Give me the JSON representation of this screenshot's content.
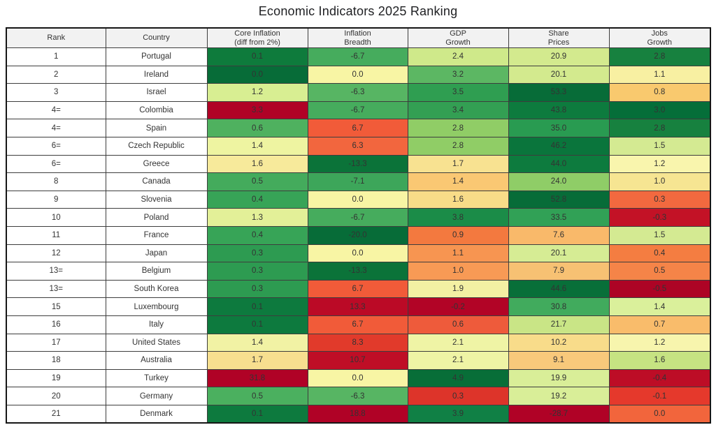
{
  "title": "Economic Indicators 2025 Ranking",
  "colors": {
    "header_bg": "#f2f2f2",
    "grid_border": "#3d3d3d",
    "outer_border": "#161616",
    "cell_text": "#333333",
    "scale_green_max": "#076c38",
    "scale_center": "#f8f5a4",
    "scale_red_max": "#b00226"
  },
  "table": {
    "headers": [
      "Rank",
      "Country",
      "Core Inflation\n(diff from 2%)",
      "Inflation\nBreadth",
      "GDP\nGrowth",
      "Share\nPrices",
      "Jobs\nGrowth"
    ],
    "rows": [
      {
        "rank": "1",
        "country": "Portugal",
        "values": [
          {
            "v": "0.1",
            "bg": "#0e7b3c"
          },
          {
            "v": "-6.7",
            "bg": "#46ac5d"
          },
          {
            "v": "2.4",
            "bg": "#cfe98a"
          },
          {
            "v": "20.9",
            "bg": "#d3ea8e"
          },
          {
            "v": "2.8",
            "bg": "#17813f"
          }
        ]
      },
      {
        "rank": "2",
        "country": "Ireland",
        "values": [
          {
            "v": "0.0",
            "bg": "#076c38"
          },
          {
            "v": "0.0",
            "bg": "#f8f5a4"
          },
          {
            "v": "3.2",
            "bg": "#5cb763"
          },
          {
            "v": "20.1",
            "bg": "#d3ea8e"
          },
          {
            "v": "1.1",
            "bg": "#f8f0a2"
          }
        ]
      },
      {
        "rank": "3",
        "country": "Israel",
        "values": [
          {
            "v": "1.2",
            "bg": "#d8ee92"
          },
          {
            "v": "-6.3",
            "bg": "#57b563"
          },
          {
            "v": "3.5",
            "bg": "#2f9e51"
          },
          {
            "v": "53.3",
            "bg": "#076c38"
          },
          {
            "v": "0.8",
            "bg": "#f9c96e"
          }
        ]
      },
      {
        "rank": "4=",
        "country": "Colombia",
        "values": [
          {
            "v": "3.3",
            "bg": "#b00226"
          },
          {
            "v": "-6.7",
            "bg": "#46ac5d"
          },
          {
            "v": "3.4",
            "bg": "#339f53"
          },
          {
            "v": "43.8",
            "bg": "#0d7b3e"
          },
          {
            "v": "3.0",
            "bg": "#056e39"
          }
        ]
      },
      {
        "rank": "4=",
        "country": "Spain",
        "values": [
          {
            "v": "0.6",
            "bg": "#4fb15f"
          },
          {
            "v": "6.7",
            "bg": "#f15b39"
          },
          {
            "v": "2.8",
            "bg": "#90cd66"
          },
          {
            "v": "35.0",
            "bg": "#299b51"
          },
          {
            "v": "2.8",
            "bg": "#17813f"
          }
        ]
      },
      {
        "rank": "6=",
        "country": "Czech Republic",
        "values": [
          {
            "v": "1.4",
            "bg": "#eef4a1"
          },
          {
            "v": "6.3",
            "bg": "#f2663e"
          },
          {
            "v": "2.8",
            "bg": "#90cd66"
          },
          {
            "v": "46.2",
            "bg": "#0a753c"
          },
          {
            "v": "1.5",
            "bg": "#d4ea92"
          }
        ]
      },
      {
        "rank": "6=",
        "country": "Greece",
        "values": [
          {
            "v": "1.6",
            "bg": "#f7ea9b"
          },
          {
            "v": "-13.3",
            "bg": "#0b7339"
          },
          {
            "v": "1.7",
            "bg": "#f8e291"
          },
          {
            "v": "44.0",
            "bg": "#0d7b3e"
          },
          {
            "v": "1.2",
            "bg": "#f9f5ad"
          }
        ]
      },
      {
        "rank": "8",
        "country": "Canada",
        "values": [
          {
            "v": "0.5",
            "bg": "#44ab5c"
          },
          {
            "v": "-7.1",
            "bg": "#3da65a"
          },
          {
            "v": "1.4",
            "bg": "#fac873"
          },
          {
            "v": "24.0",
            "bg": "#8fcd67"
          },
          {
            "v": "1.0",
            "bg": "#f6e592"
          }
        ]
      },
      {
        "rank": "9",
        "country": "Slovenia",
        "values": [
          {
            "v": "0.4",
            "bg": "#37a457"
          },
          {
            "v": "0.0",
            "bg": "#f8f5a4"
          },
          {
            "v": "1.6",
            "bg": "#f8dc88"
          },
          {
            "v": "52.8",
            "bg": "#076c38"
          },
          {
            "v": "0.3",
            "bg": "#f2693f"
          }
        ]
      },
      {
        "rank": "10",
        "country": "Poland",
        "values": [
          {
            "v": "1.3",
            "bg": "#e3f098"
          },
          {
            "v": "-6.7",
            "bg": "#46ac5d"
          },
          {
            "v": "3.8",
            "bg": "#1b8c48"
          },
          {
            "v": "33.5",
            "bg": "#31a156"
          },
          {
            "v": "-0.3",
            "bg": "#c31226"
          }
        ]
      },
      {
        "rank": "11",
        "country": "France",
        "values": [
          {
            "v": "0.4",
            "bg": "#37a457"
          },
          {
            "v": "-20.0",
            "bg": "#076c38"
          },
          {
            "v": "0.9",
            "bg": "#f3793f"
          },
          {
            "v": "7.6",
            "bg": "#f9b96a"
          },
          {
            "v": "1.5",
            "bg": "#d4ea92"
          }
        ]
      },
      {
        "rank": "12",
        "country": "Japan",
        "values": [
          {
            "v": "0.3",
            "bg": "#2d9b51"
          },
          {
            "v": "0.0",
            "bg": "#f8f5a4"
          },
          {
            "v": "1.1",
            "bg": "#f79551"
          },
          {
            "v": "20.1",
            "bg": "#d6ec94"
          },
          {
            "v": "0.4",
            "bg": "#f47d41"
          }
        ]
      },
      {
        "rank": "13=",
        "country": "Belgium",
        "values": [
          {
            "v": "0.3",
            "bg": "#2d9b51"
          },
          {
            "v": "-13.3",
            "bg": "#0b7339"
          },
          {
            "v": "1.0",
            "bg": "#f89a55"
          },
          {
            "v": "7.9",
            "bg": "#f7c173"
          },
          {
            "v": "0.5",
            "bg": "#f58448"
          }
        ]
      },
      {
        "rank": "13=",
        "country": "South Korea",
        "values": [
          {
            "v": "0.3",
            "bg": "#2d9b51"
          },
          {
            "v": "6.7",
            "bg": "#f15b39"
          },
          {
            "v": "1.9",
            "bg": "#f3f0a3"
          },
          {
            "v": "44.6",
            "bg": "#086f39"
          },
          {
            "v": "-0.5",
            "bg": "#ad0425"
          }
        ]
      },
      {
        "rank": "15",
        "country": "Luxembourg",
        "values": [
          {
            "v": "0.1",
            "bg": "#0d7a3e"
          },
          {
            "v": "13.3",
            "bg": "#bb0a26"
          },
          {
            "v": "-0.2",
            "bg": "#b20426"
          },
          {
            "v": "30.8",
            "bg": "#41ab5d"
          },
          {
            "v": "1.4",
            "bg": "#daf09b"
          }
        ]
      },
      {
        "rank": "16",
        "country": "Italy",
        "values": [
          {
            "v": "0.1",
            "bg": "#0d7a3e"
          },
          {
            "v": "6.7",
            "bg": "#f15b39"
          },
          {
            "v": "0.6",
            "bg": "#ee5b3b"
          },
          {
            "v": "21.7",
            "bg": "#c9e586"
          },
          {
            "v": "0.7",
            "bg": "#f9bc6b"
          }
        ]
      },
      {
        "rank": "17",
        "country": "United States",
        "values": [
          {
            "v": "1.4",
            "bg": "#f1f2a4"
          },
          {
            "v": "8.3",
            "bg": "#e13a2b"
          },
          {
            "v": "2.1",
            "bg": "#eff4a5"
          },
          {
            "v": "10.2",
            "bg": "#f8dc8a"
          },
          {
            "v": "1.2",
            "bg": "#f7f5ad"
          }
        ]
      },
      {
        "rank": "18",
        "country": "Australia",
        "values": [
          {
            "v": "1.7",
            "bg": "#f7df8f"
          },
          {
            "v": "10.7",
            "bg": "#bf0e26"
          },
          {
            "v": "2.1",
            "bg": "#eff4a5"
          },
          {
            "v": "9.1",
            "bg": "#f8c97b"
          },
          {
            "v": "1.6",
            "bg": "#c6e382"
          }
        ]
      },
      {
        "rank": "19",
        "country": "Turkey",
        "values": [
          {
            "v": "31.8",
            "bg": "#b00226"
          },
          {
            "v": "0.0",
            "bg": "#f8f5a4"
          },
          {
            "v": "4.9",
            "bg": "#086e38"
          },
          {
            "v": "19.9",
            "bg": "#d9ee98"
          },
          {
            "v": "-0.4",
            "bg": "#bd0d26"
          }
        ]
      },
      {
        "rank": "20",
        "country": "Germany",
        "values": [
          {
            "v": "0.5",
            "bg": "#4bb05f"
          },
          {
            "v": "-6.3",
            "bg": "#57b563"
          },
          {
            "v": "0.3",
            "bg": "#dd342a"
          },
          {
            "v": "19.2",
            "bg": "#d9ee98"
          },
          {
            "v": "-0.1",
            "bg": "#e5392c"
          }
        ]
      },
      {
        "rank": "21",
        "country": "Denmark",
        "values": [
          {
            "v": "0.1",
            "bg": "#0d7a3e"
          },
          {
            "v": "18.8",
            "bg": "#b00226"
          },
          {
            "v": "3.9",
            "bg": "#108045"
          },
          {
            "v": "-28.7",
            "bg": "#b00226"
          },
          {
            "v": "0.0",
            "bg": "#f2653c"
          }
        ]
      }
    ]
  },
  "chart_data": {
    "type": "table",
    "title": "Economic Indicators 2025 Ranking",
    "columns": [
      "Rank",
      "Country",
      "Core Inflation (diff from 2%)",
      "Inflation Breadth",
      "GDP Growth",
      "Share Prices",
      "Jobs Growth"
    ],
    "rows": [
      [
        "1",
        "Portugal",
        0.1,
        -6.7,
        2.4,
        20.9,
        2.8
      ],
      [
        "2",
        "Ireland",
        0.0,
        0.0,
        3.2,
        20.1,
        1.1
      ],
      [
        "3",
        "Israel",
        1.2,
        -6.3,
        3.5,
        53.3,
        0.8
      ],
      [
        "4=",
        "Colombia",
        3.3,
        -6.7,
        3.4,
        43.8,
        3.0
      ],
      [
        "4=",
        "Spain",
        0.6,
        6.7,
        2.8,
        35.0,
        2.8
      ],
      [
        "6=",
        "Czech Republic",
        1.4,
        6.3,
        2.8,
        46.2,
        1.5
      ],
      [
        "6=",
        "Greece",
        1.6,
        -13.3,
        1.7,
        44.0,
        1.2
      ],
      [
        "8",
        "Canada",
        0.5,
        -7.1,
        1.4,
        24.0,
        1.0
      ],
      [
        "9",
        "Slovenia",
        0.4,
        0.0,
        1.6,
        52.8,
        0.3
      ],
      [
        "10",
        "Poland",
        1.3,
        -6.7,
        3.8,
        33.5,
        -0.3
      ],
      [
        "11",
        "France",
        0.4,
        -20.0,
        0.9,
        7.6,
        1.5
      ],
      [
        "12",
        "Japan",
        0.3,
        0.0,
        1.1,
        20.1,
        0.4
      ],
      [
        "13=",
        "Belgium",
        0.3,
        -13.3,
        1.0,
        7.9,
        0.5
      ],
      [
        "13=",
        "South Korea",
        0.3,
        6.7,
        1.9,
        44.6,
        -0.5
      ],
      [
        "15",
        "Luxembourg",
        0.1,
        13.3,
        -0.2,
        30.8,
        1.4
      ],
      [
        "16",
        "Italy",
        0.1,
        6.7,
        0.6,
        21.7,
        0.7
      ],
      [
        "17",
        "United States",
        1.4,
        8.3,
        2.1,
        10.2,
        1.2
      ],
      [
        "18",
        "Australia",
        1.7,
        10.7,
        2.1,
        9.1,
        1.6
      ],
      [
        "19",
        "Turkey",
        31.8,
        0.0,
        4.9,
        19.9,
        -0.4
      ],
      [
        "20",
        "Germany",
        0.5,
        -6.3,
        0.3,
        19.2,
        -0.1
      ],
      [
        "21",
        "Denmark",
        0.1,
        18.8,
        3.9,
        -28.7,
        0.0
      ]
    ],
    "layout_hints": {
      "heatmap": true,
      "color_scale": "RdYlGn per column (green = better, red = worse); lower is better for Core Inflation and Inflation Breadth, higher is better for GDP Growth, Share Prices, Jobs Growth",
      "grid": true,
      "header_background": "#f2f2f2"
    }
  }
}
